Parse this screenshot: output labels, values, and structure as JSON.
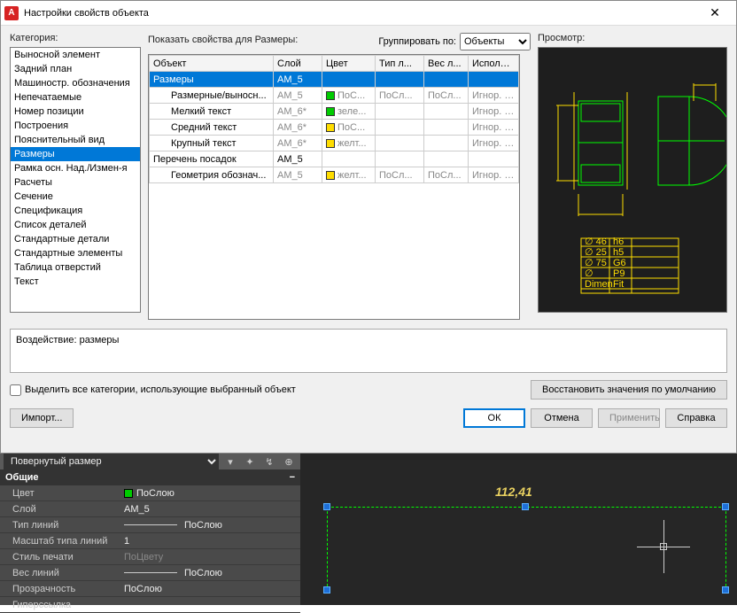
{
  "dialog": {
    "title": "Настройки свойств объекта",
    "category_label": "Категория:",
    "show_props_label": "Показать свойства для Размеры:",
    "group_by_label": "Группировать по:",
    "group_by_value": "Объекты",
    "preview_label": "Просмотр:",
    "categories": [
      "Выносной элемент",
      "Задний план",
      "Машиностр. обозначения",
      "Непечатаемые",
      "Номер позиции",
      "Построения",
      "Пояснительный вид",
      "Размеры",
      "Рамка осн. Над./Измен-я",
      "Расчеты",
      "Сечение",
      "Спецификация",
      "Список деталей",
      "Стандартные детали",
      "Стандартные элементы",
      "Таблица отверстий",
      "Текст"
    ],
    "selected_category_index": 7,
    "grid": {
      "columns": [
        "Объект",
        "Слой",
        "Цвет",
        "Тип л...",
        "Вес л...",
        "Использ..."
      ],
      "rows": [
        {
          "obj": "Размеры",
          "layer": "AM_5",
          "color": null,
          "lt": "",
          "lw": "",
          "use": "",
          "sel": true,
          "indent": 0
        },
        {
          "obj": "Размерные/выносн...",
          "layer": "AM_5",
          "color": "#00cc00",
          "colorTxt": "ПоС...",
          "lt": "ПоСл...",
          "lw": "ПоСл...",
          "use": "Игнор. н...",
          "indent": 1,
          "gray": true
        },
        {
          "obj": "Мелкий текст",
          "layer": "AM_6*",
          "color": "#00cc00",
          "colorTxt": "зеле...",
          "lt": "",
          "lw": "",
          "use": "Игнор. н...",
          "indent": 1,
          "gray": true
        },
        {
          "obj": "Средний текст",
          "layer": "AM_6*",
          "color": "#ffdd00",
          "colorTxt": "ПоС...",
          "lt": "",
          "lw": "",
          "use": "Игнор. н...",
          "indent": 1,
          "gray": true
        },
        {
          "obj": "Крупный текст",
          "layer": "AM_6*",
          "color": "#ffdd00",
          "colorTxt": "желт...",
          "lt": "",
          "lw": "",
          "use": "Игнор. н...",
          "indent": 1,
          "gray": true
        },
        {
          "obj": "Перечень посадок",
          "layer": "AM_5",
          "color": null,
          "lt": "",
          "lw": "",
          "use": "",
          "indent": 0
        },
        {
          "obj": "Геометрия обознач...",
          "layer": "AM_5",
          "color": "#ffdd00",
          "colorTxt": "желт...",
          "lt": "ПоСл...",
          "lw": "ПоСл...",
          "use": "Игнор. н...",
          "indent": 1,
          "gray": true
        }
      ]
    },
    "impact_label": "Воздействие: размеры",
    "checkbox_label": "Выделить все категории, использующие выбранный объект",
    "restore_btn": "Восстановить значения по умолчанию",
    "import_btn": "Импорт...",
    "ok_btn": "ОК",
    "cancel_btn": "Отмена",
    "apply_btn": "Применить",
    "help_btn": "Справка"
  },
  "preview_table": {
    "rows": [
      [
        "∅ 46",
        "h6",
        ""
      ],
      [
        "∅ 25",
        "h5",
        ""
      ],
      [
        "∅ 75",
        "G6",
        ""
      ],
      [
        "∅",
        "P9",
        ""
      ],
      [
        "Dimen.",
        "Fit",
        ""
      ]
    ],
    "line_color": "#ffdd00",
    "text_color": "#ffdd00"
  },
  "preview_drawing": {
    "stroke": "#00ff00",
    "dim_color": "#ffdd00"
  },
  "lower": {
    "selector": "Повернутый размер",
    "group_header": "Общие",
    "props": [
      {
        "k": "Цвет",
        "v": "ПоСлою",
        "swatch": "#00cc00"
      },
      {
        "k": "Слой",
        "v": "AM_5"
      },
      {
        "k": "Тип линий",
        "v": "ПоСлою",
        "line": true
      },
      {
        "k": "Масштаб типа линий",
        "v": "1"
      },
      {
        "k": "Стиль печати",
        "v": "ПоЦвету",
        "gray": true
      },
      {
        "k": "Вес линий",
        "v": "ПоСлою",
        "line": true
      },
      {
        "k": "Прозрачность",
        "v": "ПоСлою"
      },
      {
        "k": "Гиперссылка",
        "v": ""
      }
    ],
    "dim_text": "112,41",
    "dim_color": "#e8d060",
    "grip_color": "#1e6fd8",
    "bg": "#262626"
  }
}
